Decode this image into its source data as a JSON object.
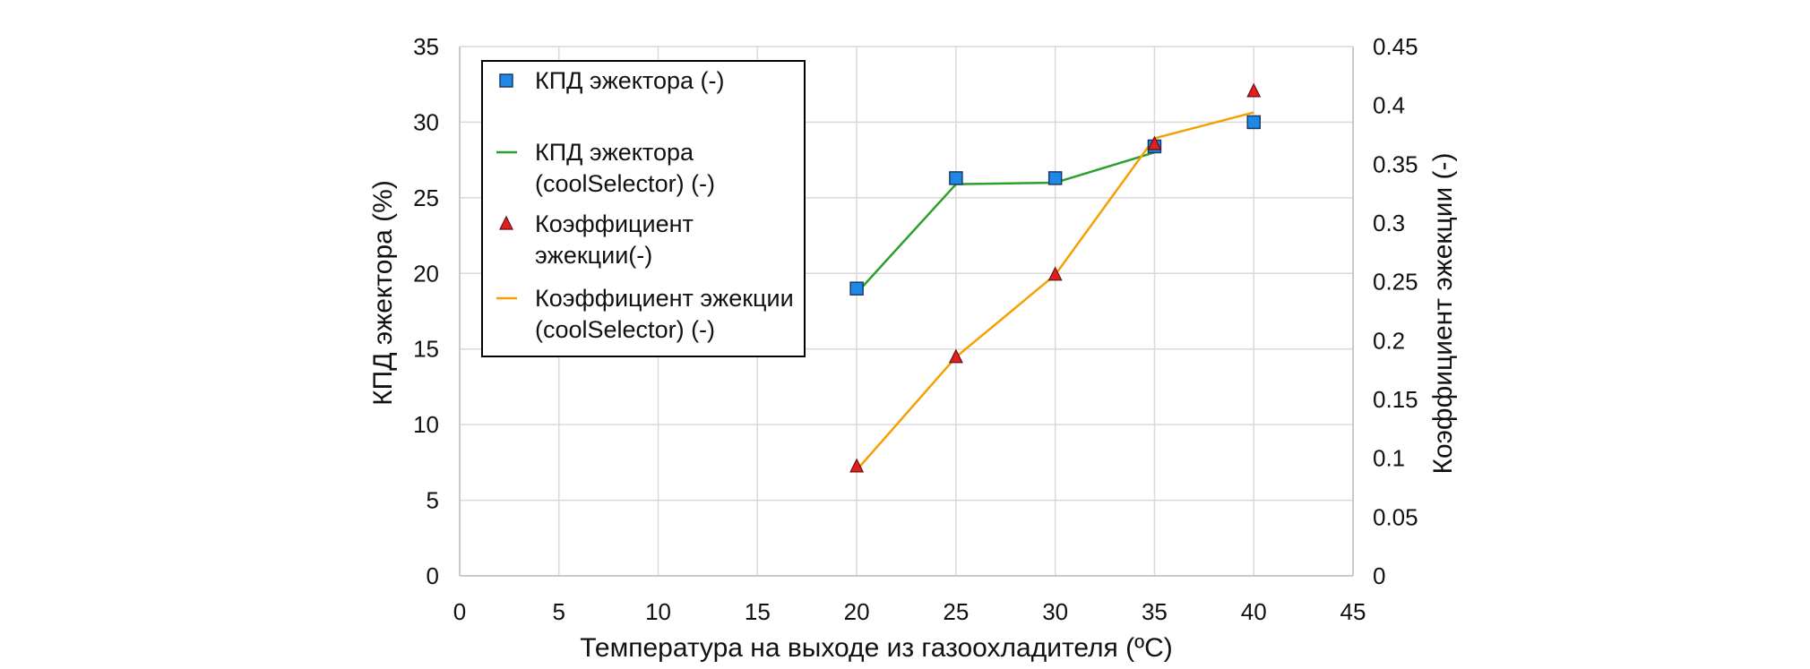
{
  "chart_data": {
    "type": "line",
    "xlabel": "Температура на выходе из газоохладителя (ºC)",
    "ylabel": "КПД эжектора (%)",
    "y2label": "Коэффициент эжекции (-)",
    "xlim": [
      0,
      45
    ],
    "ylim": [
      0,
      35
    ],
    "y2lim": [
      0,
      0.45
    ],
    "x_ticks": [
      "0",
      "5",
      "10",
      "15",
      "20",
      "25",
      "30",
      "35",
      "40",
      "45"
    ],
    "y_ticks": [
      "0",
      "5",
      "10",
      "15",
      "20",
      "25",
      "30",
      "35"
    ],
    "y2_ticks": [
      "0",
      "0.05",
      "0.1",
      "0.15",
      "0.2",
      "0.25",
      "0.3",
      "0.35",
      "0.4",
      "0.45"
    ],
    "grid": true,
    "legend_position": "top-left",
    "series": [
      {
        "name_lines": [
          "КПД эжектора (-)"
        ],
        "axis": "left",
        "style": "marker-square",
        "color": "#1e88e5",
        "x": [
          20,
          25,
          30,
          35,
          40
        ],
        "y": [
          19.0,
          26.3,
          26.3,
          28.4,
          30.0
        ]
      },
      {
        "name_lines": [
          "КПД эжектора",
          "(coolSelector) (-)"
        ],
        "axis": "left",
        "style": "line",
        "color": "#2ca02c",
        "x": [
          20,
          25,
          30,
          35
        ],
        "y": [
          18.7,
          25.9,
          26.0,
          28.0
        ]
      },
      {
        "name_lines": [
          "Коэффициент",
          "эжекции(-)"
        ],
        "axis": "right",
        "style": "marker-triangle",
        "color": "#e02020",
        "x": [
          20,
          25,
          30,
          35,
          40
        ],
        "y": [
          0.093,
          0.186,
          0.256,
          0.367,
          0.412
        ]
      },
      {
        "name_lines": [
          "Коэффициент эжекции",
          "(coolSelector) (-)"
        ],
        "axis": "right",
        "style": "line",
        "color": "#f5a000",
        "x": [
          20,
          25,
          30,
          35,
          40
        ],
        "y": [
          0.09,
          0.186,
          0.256,
          0.372,
          0.394
        ]
      }
    ]
  }
}
